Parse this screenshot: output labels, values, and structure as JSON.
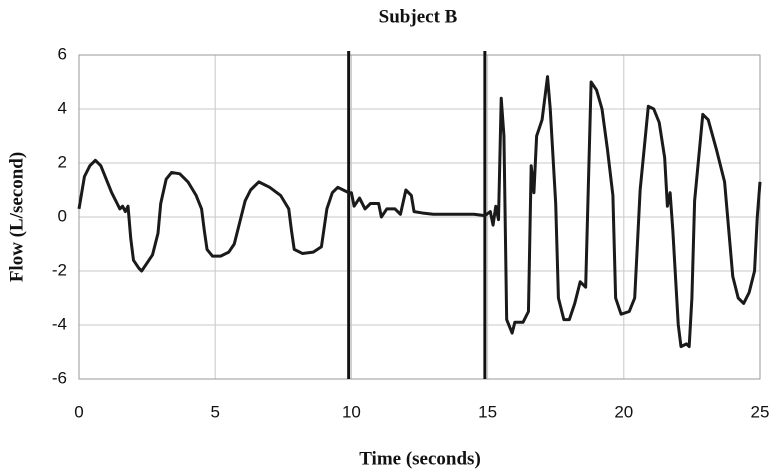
{
  "chart_data": {
    "type": "line",
    "title": "Subject B",
    "x_label": "Time (seconds)",
    "y_label": "Flow (L/second)",
    "xlim": [
      0,
      25
    ],
    "xticks": [
      0,
      5,
      10,
      15,
      20,
      25
    ],
    "ylim": [
      -6,
      6
    ],
    "yticks": [
      -6,
      -4,
      -2,
      0,
      2,
      4,
      6
    ],
    "grid": true,
    "color": "#1a1a1a",
    "markers": [
      9.9,
      14.9
    ],
    "x": [
      0,
      0.2,
      0.4,
      0.6,
      0.8,
      1.0,
      1.2,
      1.4,
      1.5,
      1.6,
      1.7,
      1.8,
      1.9,
      2.0,
      2.2,
      2.3,
      2.5,
      2.7,
      2.9,
      3.0,
      3.2,
      3.4,
      3.7,
      4.0,
      4.3,
      4.5,
      4.6,
      4.7,
      4.9,
      5.2,
      5.5,
      5.7,
      5.9,
      6.1,
      6.3,
      6.6,
      7.0,
      7.4,
      7.7,
      7.8,
      7.9,
      8.2,
      8.6,
      8.9,
      9.1,
      9.3,
      9.5,
      9.7,
      9.9,
      10.0,
      10.1,
      10.3,
      10.5,
      10.7,
      11.0,
      11.1,
      11.3,
      11.6,
      11.8,
      12.0,
      12.2,
      12.3,
      12.6,
      13.0,
      13.5,
      14.0,
      14.5,
      14.9,
      15.1,
      15.2,
      15.3,
      15.4,
      15.5,
      15.6,
      15.7,
      15.9,
      16.0,
      16.3,
      16.5,
      16.6,
      16.7,
      16.8,
      17.0,
      17.2,
      17.3,
      17.5,
      17.6,
      17.8,
      18.0,
      18.2,
      18.4,
      18.6,
      18.8,
      19.0,
      19.2,
      19.4,
      19.6,
      19.7,
      19.9,
      20.2,
      20.4,
      20.6,
      20.9,
      21.1,
      21.3,
      21.5,
      21.6,
      21.7,
      21.8,
      22.0,
      22.1,
      22.3,
      22.4,
      22.5,
      22.6,
      22.9,
      23.1,
      23.4,
      23.7,
      24.0,
      24.2,
      24.4,
      24.6,
      24.8,
      24.9,
      25.0
    ],
    "values": [
      0.3,
      1.5,
      1.9,
      2.1,
      1.9,
      1.4,
      0.9,
      0.5,
      0.3,
      0.4,
      0.2,
      0.4,
      -0.8,
      -1.6,
      -1.9,
      -2.0,
      -1.7,
      -1.4,
      -0.6,
      0.5,
      1.4,
      1.65,
      1.6,
      1.3,
      0.8,
      0.3,
      -0.5,
      -1.2,
      -1.45,
      -1.45,
      -1.3,
      -1.0,
      -0.2,
      0.6,
      1.0,
      1.3,
      1.1,
      0.8,
      0.3,
      -0.5,
      -1.2,
      -1.35,
      -1.3,
      -1.1,
      0.3,
      0.9,
      1.1,
      1.0,
      0.9,
      0.9,
      0.4,
      0.7,
      0.3,
      0.5,
      0.5,
      0.0,
      0.3,
      0.3,
      0.1,
      1.0,
      0.8,
      0.2,
      0.15,
      0.1,
      0.1,
      0.1,
      0.1,
      0.05,
      0.2,
      -0.3,
      0.4,
      -0.1,
      4.4,
      3.0,
      -3.8,
      -4.3,
      -3.9,
      -3.9,
      -3.5,
      1.9,
      0.9,
      3.0,
      3.6,
      5.2,
      4.0,
      0.5,
      -3.0,
      -3.8,
      -3.8,
      -3.2,
      -2.4,
      -2.6,
      5.0,
      4.7,
      4.0,
      2.5,
      0.8,
      -3.0,
      -3.6,
      -3.5,
      -3.0,
      1.0,
      4.1,
      4.0,
      3.5,
      2.2,
      0.4,
      0.9,
      -0.5,
      -4.0,
      -4.8,
      -4.7,
      -4.8,
      -3.0,
      0.6,
      3.8,
      3.6,
      2.5,
      1.3,
      -2.2,
      -3.0,
      -3.2,
      -2.8,
      -2.0,
      0.0,
      1.3
    ]
  }
}
